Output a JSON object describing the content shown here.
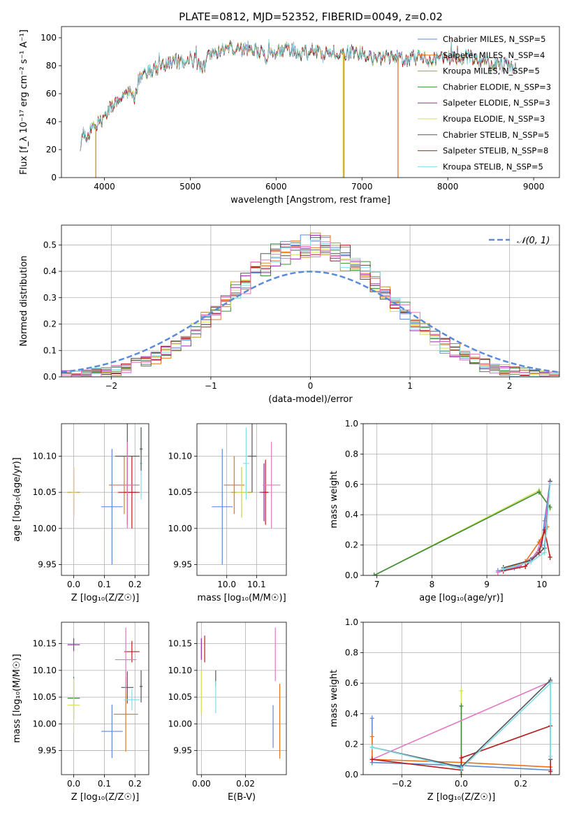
{
  "chart_data": [
    {
      "id": "spectrum",
      "type": "line",
      "title": "PLATE=0812, MJD=52352, FIBERID=0049, z=0.02",
      "xlabel": "wavelength [Angstrom, rest frame]",
      "ylabel": "Flux [f_λ 10⁻¹⁷ erg cm⁻² s⁻¹ A⁻¹]",
      "xlim": [
        3500,
        9300
      ],
      "ylim": [
        0,
        108
      ],
      "xticks": [
        4000,
        5000,
        6000,
        7000,
        8000,
        9000
      ],
      "yticks": [
        0,
        20,
        40,
        60,
        80,
        100
      ],
      "legend_position": "top-right",
      "series": [
        {
          "name": "Chabrier MILES, N_SSP=5",
          "color": "#5b8bd8"
        },
        {
          "name": "Salpeter MILES, N_SSP=4",
          "color": "#e8731c"
        },
        {
          "name": "Kroupa MILES, N_SSP=5",
          "color": "#c49220"
        },
        {
          "name": "Chabrier ELODIE, N_SSP=3",
          "color": "#3d8c3d"
        },
        {
          "name": "Salpeter ELODIE, N_SSP=3",
          "color": "#9b27b0"
        },
        {
          "name": "Kroupa ELODIE, N_SSP=3",
          "color": "#d4e157"
        },
        {
          "name": "Chabrier STELIB, N_SSP=5",
          "color": "#555555"
        },
        {
          "name": "Salpeter STELIB, N_SSP=8",
          "color": "#b71c1c"
        },
        {
          "name": "Kroupa STELIB, N_SSP=5",
          "color": "#80deea"
        }
      ],
      "profile": [
        [
          3720,
          25
        ],
        [
          3760,
          32
        ],
        [
          3800,
          30
        ],
        [
          3850,
          35
        ],
        [
          3900,
          38
        ],
        [
          3950,
          42
        ],
        [
          4000,
          40
        ],
        [
          4050,
          50
        ],
        [
          4100,
          52
        ],
        [
          4200,
          58
        ],
        [
          4300,
          62
        ],
        [
          4350,
          55
        ],
        [
          4400,
          70
        ],
        [
          4500,
          75
        ],
        [
          4600,
          78
        ],
        [
          4700,
          80
        ],
        [
          4800,
          82
        ],
        [
          4900,
          83
        ],
        [
          5000,
          85
        ],
        [
          5100,
          82
        ],
        [
          5170,
          78
        ],
        [
          5200,
          88
        ],
        [
          5300,
          90
        ],
        [
          5400,
          92
        ],
        [
          5500,
          93
        ],
        [
          5600,
          92
        ],
        [
          5700,
          93
        ],
        [
          5800,
          91
        ],
        [
          5890,
          84
        ],
        [
          5950,
          92
        ],
        [
          6000,
          90
        ],
        [
          6100,
          92
        ],
        [
          6200,
          91
        ],
        [
          6300,
          89
        ],
        [
          6400,
          90
        ],
        [
          6500,
          91
        ],
        [
          6563,
          86
        ],
        [
          6600,
          91
        ],
        [
          6700,
          90
        ],
        [
          6800,
          89
        ],
        [
          6900,
          90
        ],
        [
          7000,
          89
        ],
        [
          7100,
          86
        ],
        [
          7200,
          84
        ],
        [
          7300,
          86
        ],
        [
          7400,
          86
        ],
        [
          7500,
          83
        ],
        [
          7600,
          86
        ],
        [
          7700,
          85
        ],
        [
          7800,
          84
        ],
        [
          7900,
          86
        ],
        [
          8000,
          86
        ],
        [
          8100,
          85
        ],
        [
          8200,
          86
        ],
        [
          8300,
          86
        ],
        [
          8400,
          83
        ],
        [
          8500,
          80
        ],
        [
          8600,
          82
        ],
        [
          8700,
          80
        ],
        [
          8800,
          79
        ]
      ],
      "dropouts": [
        {
          "x": 3900,
          "color": "#c49220"
        },
        {
          "x": 6780,
          "color": "#d4e157"
        },
        {
          "x": 6790,
          "color": "#c49220"
        },
        {
          "x": 7420,
          "color": "#e8731c"
        }
      ]
    },
    {
      "id": "residuals",
      "type": "line",
      "xlabel": "(data-model)/error",
      "ylabel": "Normed distribution",
      "xlim": [
        -2.5,
        2.5
      ],
      "ylim": [
        0,
        0.575
      ],
      "xticks": [
        -2,
        -1,
        0,
        1,
        2
      ],
      "yticks": [
        0.0,
        0.1,
        0.2,
        0.3,
        0.4,
        0.5
      ],
      "grid": true,
      "legend_position": "top-right",
      "legend": "𝒩(0, 1)",
      "normal_color": "#5b8bd8",
      "bin_width": 0.1
    },
    {
      "id": "age-vs-Z",
      "type": "scatter",
      "xlabel": "Z [log₁₀(Z/Z☉)]",
      "ylabel": "age  [log₁₀(age/yr)]",
      "xlim": [
        -0.04,
        0.245
      ],
      "ylim": [
        9.935,
        10.145
      ],
      "xticks": [
        0.0,
        0.1,
        0.2
      ],
      "yticks": [
        9.95,
        10.0,
        10.05,
        10.1
      ],
      "grid": true,
      "points": [
        {
          "x": 0.0,
          "y": 10.05,
          "xerr": 0.02,
          "yerr": 0.03,
          "color": "#c49220"
        },
        {
          "x": 0.0,
          "y": 10.05,
          "xerr": 0.01,
          "yerr": 0.035,
          "color": "#9b27b0"
        },
        {
          "x": 0.0,
          "y": 10.05,
          "xerr": 0.01,
          "yerr": 0.035,
          "color": "#d4e157"
        },
        {
          "x": 0.125,
          "y": 10.03,
          "xerr": 0.035,
          "yerr": 0.08,
          "color": "#5b8bd8"
        },
        {
          "x": 0.165,
          "y": 10.06,
          "xerr": 0.05,
          "yerr": 0.04,
          "color": "#e8731c"
        },
        {
          "x": 0.175,
          "y": 10.1,
          "xerr": 0.04,
          "yerr": 0.05,
          "color": "#555555"
        },
        {
          "x": 0.175,
          "y": 10.05,
          "xerr": 0.03,
          "yerr": 0.045,
          "color": "#b71c1c"
        },
        {
          "x": 0.19,
          "y": 10.05,
          "xerr": 0.025,
          "yerr": 0.05,
          "color": "#b71c1c"
        },
        {
          "x": 0.175,
          "y": 10.06,
          "xerr": 0.035,
          "yerr": 0.06,
          "color": "#e377c2"
        },
        {
          "x": 0.22,
          "y": 10.09,
          "xerr": 0.005,
          "yerr": 0.05,
          "color": "#80deea"
        },
        {
          "x": 0.22,
          "y": 10.11,
          "xerr": 0.005,
          "yerr": 0.03,
          "color": "#555555"
        }
      ]
    },
    {
      "id": "age-vs-mass",
      "type": "scatter",
      "xlabel": "mass [log₁₀(M/M☉)]",
      "ylabel": "",
      "xlim": [
        9.9,
        10.2
      ],
      "ylim": [
        9.935,
        10.145
      ],
      "xticks": [
        10.0,
        10.1
      ],
      "xtick_labels": [
        "10.0",
        "10.1"
      ],
      "yticks": [
        9.95,
        10.0,
        10.05,
        10.1
      ],
      "grid": true,
      "points": [
        {
          "x": 9.985,
          "y": 10.03,
          "xerr": 0.035,
          "yerr": 0.08,
          "color": "#5b8bd8"
        },
        {
          "x": 10.025,
          "y": 10.06,
          "xerr": 0.035,
          "yerr": 0.04,
          "color": "#e8731c"
        },
        {
          "x": 10.05,
          "y": 10.05,
          "xerr": 0.035,
          "yerr": 0.035,
          "color": "#c49220"
        },
        {
          "x": 10.05,
          "y": 10.05,
          "xerr": 0.02,
          "yerr": 0.035,
          "color": "#d4e157"
        },
        {
          "x": 10.065,
          "y": 10.09,
          "xerr": 0.01,
          "yerr": 0.05,
          "color": "#80deea"
        },
        {
          "x": 10.085,
          "y": 10.1,
          "xerr": 0.015,
          "yerr": 0.05,
          "color": "#555555"
        },
        {
          "x": 10.125,
          "y": 10.05,
          "xerr": 0.015,
          "yerr": 0.04,
          "color": "#9b27b0"
        },
        {
          "x": 10.13,
          "y": 10.05,
          "xerr": 0.01,
          "yerr": 0.045,
          "color": "#b71c1c"
        },
        {
          "x": 10.15,
          "y": 10.06,
          "xerr": 0.03,
          "yerr": 0.06,
          "color": "#e377c2"
        }
      ]
    },
    {
      "id": "massweight-vs-age",
      "type": "line",
      "xlabel": "age  [log₁₀(age/yr)]",
      "ylabel": "mass weight",
      "xlim": [
        6.75,
        10.32
      ],
      "ylim": [
        0,
        1.0
      ],
      "xticks": [
        7,
        8,
        9,
        10
      ],
      "yticks": [
        0.0,
        0.2,
        0.4,
        0.6,
        0.8,
        1.0
      ],
      "grid": true,
      "series": [
        {
          "color": "#d4e157",
          "points": [
            [
              6.95,
              0.0
            ],
            [
              9.95,
              0.56
            ],
            [
              10.15,
              0.44
            ]
          ]
        },
        {
          "color": "#3d8c3d",
          "points": [
            [
              6.95,
              0.0
            ],
            [
              9.95,
              0.55
            ],
            [
              10.15,
              0.45
            ]
          ]
        },
        {
          "color": "#5b8bd8",
          "points": [
            [
              9.2,
              0.03
            ],
            [
              9.5,
              0.05
            ],
            [
              9.8,
              0.1
            ],
            [
              10.0,
              0.2
            ],
            [
              10.05,
              0.36
            ],
            [
              10.15,
              0.62
            ]
          ]
        },
        {
          "color": "#e377c2",
          "points": [
            [
              9.2,
              0.02
            ],
            [
              9.6,
              0.06
            ],
            [
              9.9,
              0.14
            ],
            [
              10.05,
              0.3
            ],
            [
              10.15,
              0.62
            ]
          ]
        },
        {
          "color": "#e8731c",
          "points": [
            [
              9.3,
              0.04
            ],
            [
              9.7,
              0.09
            ],
            [
              9.95,
              0.22
            ],
            [
              10.1,
              0.32
            ]
          ]
        },
        {
          "color": "#b71c1c",
          "points": [
            [
              9.3,
              0.03
            ],
            [
              9.7,
              0.06
            ],
            [
              9.95,
              0.15
            ],
            [
              10.05,
              0.3
            ],
            [
              10.15,
              0.12
            ]
          ]
        },
        {
          "color": "#555555",
          "points": [
            [
              9.3,
              0.05
            ],
            [
              9.8,
              0.1
            ],
            [
              10.05,
              0.18
            ],
            [
              10.15,
              0.62
            ]
          ]
        },
        {
          "color": "#80deea",
          "points": [
            [
              9.3,
              0.04
            ],
            [
              9.8,
              0.09
            ],
            [
              10.05,
              0.15
            ],
            [
              10.15,
              0.6
            ]
          ]
        }
      ]
    },
    {
      "id": "mass-vs-Z",
      "type": "scatter",
      "xlabel": "Z [log₁₀(Z/Z☉)]",
      "ylabel": "mass [log₁₀(M/M☉)]",
      "xlim": [
        -0.04,
        0.245
      ],
      "ylim": [
        9.905,
        10.19
      ],
      "xticks": [
        0.0,
        0.1,
        0.2
      ],
      "yticks": [
        9.95,
        10.0,
        10.05,
        10.1,
        10.15
      ],
      "grid": true,
      "points": [
        {
          "x": 0.0,
          "y": 10.148,
          "xerr": 0.02,
          "yerr": 0.012,
          "color": "#9b27b0"
        },
        {
          "x": 0.0,
          "y": 10.048,
          "xerr": 0.02,
          "yerr": 0.04,
          "color": "#3d8c3d"
        },
        {
          "x": 0.0,
          "y": 10.035,
          "xerr": 0.02,
          "yerr": 0.05,
          "color": "#d4e157"
        },
        {
          "x": 0.125,
          "y": 9.986,
          "xerr": 0.035,
          "yerr": 0.05,
          "color": "#5b8bd8"
        },
        {
          "x": 0.17,
          "y": 10.018,
          "xerr": 0.04,
          "yerr": 0.07,
          "color": "#e8731c"
        },
        {
          "x": 0.175,
          "y": 10.068,
          "xerr": 0.02,
          "yerr": 0.03,
          "color": "#555555"
        },
        {
          "x": 0.19,
          "y": 10.135,
          "xerr": 0.025,
          "yerr": 0.02,
          "color": "#b71c1c"
        },
        {
          "x": 0.17,
          "y": 10.12,
          "xerr": 0.035,
          "yerr": 0.06,
          "color": "#e377c2"
        },
        {
          "x": 0.19,
          "y": 10.045,
          "xerr": 0.025,
          "yerr": 0.02,
          "color": "#80deea"
        },
        {
          "x": 0.22,
          "y": 10.07,
          "xerr": 0.005,
          "yerr": 0.03,
          "color": "#555555"
        }
      ]
    },
    {
      "id": "mass-vs-ebv",
      "type": "scatter",
      "xlabel": "E(B-V)",
      "ylabel": "",
      "xlim": [
        -0.002,
        0.0385
      ],
      "ylim": [
        9.905,
        10.19
      ],
      "xticks": [
        0.0,
        0.02
      ],
      "xtick_labels": [
        "0.00",
        "0.02"
      ],
      "yticks": [
        9.95,
        10.0,
        10.05,
        10.1,
        10.15
      ],
      "grid": true,
      "points": [
        {
          "x": 0.0,
          "y": 10.14,
          "xerr": 0,
          "yerr": 0.02,
          "color": "#9b27b0"
        },
        {
          "x": 0.0,
          "y": 10.06,
          "xerr": 0,
          "yerr": 0.04,
          "color": "#d4e157"
        },
        {
          "x": 0.0015,
          "y": 10.14,
          "xerr": 0,
          "yerr": 0.025,
          "color": "#b71c1c"
        },
        {
          "x": 0.0065,
          "y": 10.085,
          "xerr": 0,
          "yerr": 0.015,
          "color": "#555555"
        },
        {
          "x": 0.0065,
          "y": 10.05,
          "xerr": 0,
          "yerr": 0.03,
          "color": "#80deea"
        },
        {
          "x": 0.0325,
          "y": 9.995,
          "xerr": 0,
          "yerr": 0.04,
          "color": "#5b8bd8"
        },
        {
          "x": 0.0335,
          "y": 10.13,
          "xerr": 0,
          "yerr": 0.05,
          "color": "#e377c2"
        },
        {
          "x": 0.0355,
          "y": 10.005,
          "xerr": 0,
          "yerr": 0.07,
          "color": "#e8731c"
        }
      ]
    },
    {
      "id": "massweight-vs-Z",
      "type": "line",
      "xlabel": "Z [log₁₀(Z/Z☉)]",
      "ylabel": "mass weight",
      "xlim": [
        -0.33,
        0.33
      ],
      "ylim": [
        0,
        1.0
      ],
      "xticks": [
        -0.2,
        0.0,
        0.2
      ],
      "xtick_labels": [
        "−0.2",
        "0.0",
        "0.2"
      ],
      "yticks": [
        0.0,
        0.2,
        0.4,
        0.6,
        0.8,
        1.0
      ],
      "grid": true,
      "series": [
        {
          "color": "#d4e157",
          "points": [
            [
              0.0,
              0.55
            ],
            [
              0.0,
              0.0
            ]
          ]
        },
        {
          "color": "#3d8c3d",
          "points": [
            [
              0.0,
              0.45
            ],
            [
              0.0,
              0.0
            ]
          ]
        },
        {
          "color": "#5b8bd8",
          "points": [
            [
              -0.3,
              0.37
            ],
            [
              -0.3,
              0.08
            ],
            [
              0.0,
              0.06
            ],
            [
              0.3,
              0.03
            ]
          ]
        },
        {
          "color": "#e377c2",
          "points": [
            [
              -0.3,
              0.1
            ],
            [
              0.3,
              0.61
            ]
          ]
        },
        {
          "color": "#e8731c",
          "points": [
            [
              -0.3,
              0.25
            ],
            [
              -0.3,
              0.1
            ],
            [
              0.0,
              0.08
            ],
            [
              0.3,
              0.05
            ]
          ]
        },
        {
          "color": "#b71c1c",
          "points": [
            [
              -0.3,
              0.1
            ],
            [
              0.0,
              0.03
            ],
            [
              0.0,
              0.11
            ],
            [
              0.3,
              0.32
            ],
            [
              0.3,
              0.02
            ]
          ]
        },
        {
          "color": "#555555",
          "points": [
            [
              -0.3,
              0.18
            ],
            [
              0.0,
              0.05
            ],
            [
              0.3,
              0.62
            ],
            [
              0.3,
              0.1
            ]
          ]
        },
        {
          "color": "#80deea",
          "points": [
            [
              -0.3,
              0.18
            ],
            [
              0.0,
              0.04
            ],
            [
              0.3,
              0.6
            ],
            [
              0.3,
              0.12
            ]
          ]
        }
      ]
    }
  ]
}
